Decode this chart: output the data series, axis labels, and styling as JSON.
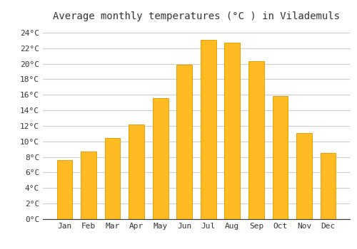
{
  "title": "Average monthly temperatures (°C ) in Vilademuls",
  "months": [
    "Jan",
    "Feb",
    "Mar",
    "Apr",
    "May",
    "Jun",
    "Jul",
    "Aug",
    "Sep",
    "Oct",
    "Nov",
    "Dec"
  ],
  "values": [
    7.6,
    8.7,
    10.4,
    12.2,
    15.6,
    19.9,
    23.1,
    22.7,
    20.3,
    15.8,
    11.1,
    8.5
  ],
  "bar_color": "#FFBB22",
  "bar_edge_color": "#E8A000",
  "background_color": "#FFFFFF",
  "plot_bg_color": "#FFFFFF",
  "grid_color": "#CCCCCC",
  "text_color": "#333333",
  "ylim": [
    0,
    25
  ],
  "yticks": [
    0,
    2,
    4,
    6,
    8,
    10,
    12,
    14,
    16,
    18,
    20,
    22,
    24
  ],
  "title_fontsize": 10,
  "tick_fontsize": 8,
  "bar_width": 0.65
}
